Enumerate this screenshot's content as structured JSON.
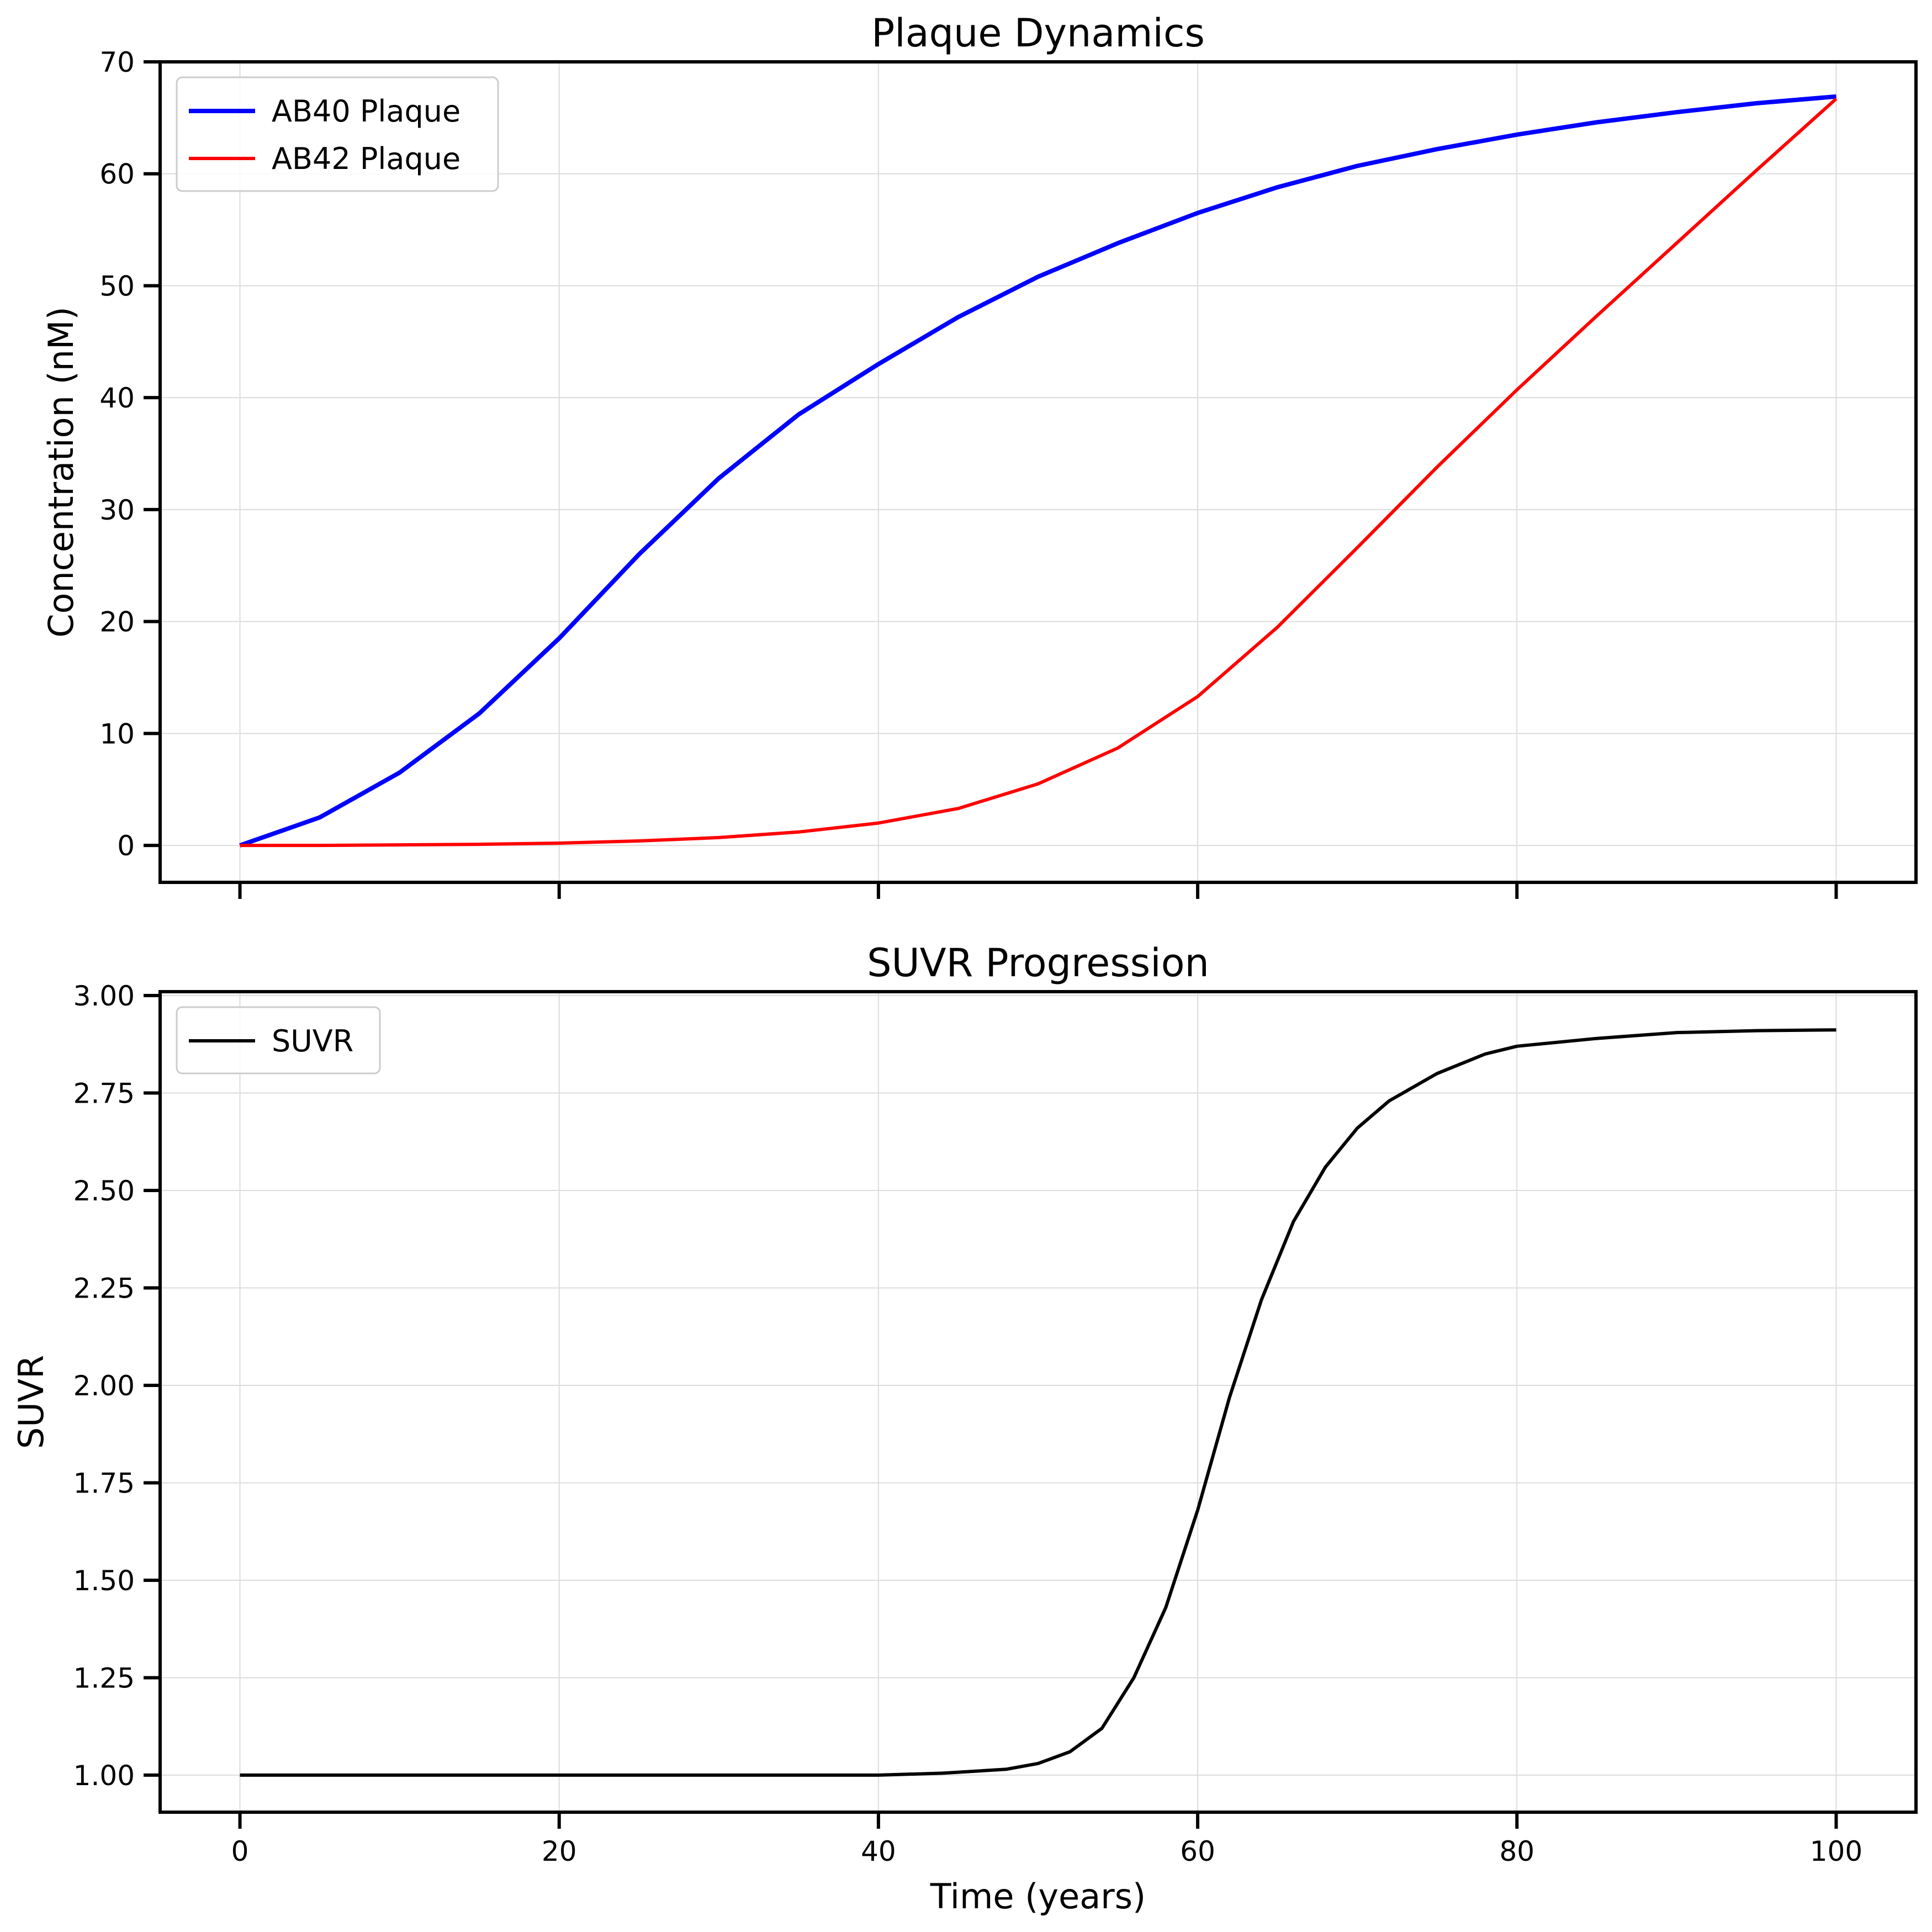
{
  "chart_data": [
    {
      "type": "line",
      "title": "Plaque Dynamics",
      "xlabel": "",
      "ylabel": "Concentration (nM)",
      "xlim": [
        -5,
        105
      ],
      "ylim": [
        -3.3,
        70
      ],
      "xticks": [
        0,
        20,
        40,
        60,
        80,
        100
      ],
      "show_xtick_labels": false,
      "yticks": [
        0,
        10,
        20,
        30,
        40,
        50,
        60,
        70
      ],
      "ytick_labels": [
        "0",
        "10",
        "20",
        "30",
        "40",
        "50",
        "60",
        "70"
      ],
      "grid": true,
      "legend_position": "top-left",
      "series": [
        {
          "name": "AB40 Plaque",
          "color": "#0000ff",
          "x": [
            0,
            5,
            10,
            15,
            20,
            25,
            30,
            35,
            40,
            45,
            50,
            55,
            60,
            65,
            70,
            75,
            80,
            85,
            90,
            95,
            100
          ],
          "y": [
            0,
            2.5,
            6.5,
            11.8,
            18.5,
            26.0,
            32.8,
            38.5,
            43.0,
            47.2,
            50.8,
            53.8,
            56.5,
            58.8,
            60.7,
            62.2,
            63.5,
            64.6,
            65.5,
            66.3,
            66.9
          ]
        },
        {
          "name": "AB42 Plaque",
          "color": "#ff0000",
          "x": [
            0,
            5,
            10,
            15,
            20,
            25,
            30,
            35,
            40,
            45,
            50,
            55,
            60,
            65,
            70,
            75,
            80,
            85,
            90,
            95,
            100
          ],
          "y": [
            0,
            0,
            0.05,
            0.1,
            0.2,
            0.4,
            0.7,
            1.2,
            2.0,
            3.3,
            5.5,
            8.7,
            13.3,
            19.5,
            26.6,
            33.8,
            40.7,
            47.3,
            53.8,
            60.3,
            66.7
          ]
        }
      ]
    },
    {
      "type": "line",
      "title": "SUVR Progression",
      "xlabel": "Time (years)",
      "ylabel": "SUVR",
      "xlim": [
        -5,
        105
      ],
      "ylim": [
        0.905,
        3.01
      ],
      "xticks": [
        0,
        20,
        40,
        60,
        80,
        100
      ],
      "xtick_labels": [
        "0",
        "20",
        "40",
        "60",
        "80",
        "100"
      ],
      "yticks": [
        1.0,
        1.25,
        1.5,
        1.75,
        2.0,
        2.25,
        2.5,
        2.75,
        3.0
      ],
      "ytick_labels": [
        "1.00",
        "1.25",
        "1.50",
        "1.75",
        "2.00",
        "2.25",
        "2.50",
        "2.75",
        "3.00"
      ],
      "grid": true,
      "legend_position": "top-left",
      "series": [
        {
          "name": "SUVR",
          "color": "#000000",
          "x": [
            0,
            10,
            20,
            30,
            40,
            44,
            48,
            50,
            52,
            54,
            56,
            58,
            60,
            62,
            64,
            66,
            68,
            70,
            72,
            75,
            78,
            80,
            85,
            90,
            95,
            100
          ],
          "y": [
            1.0,
            1.0,
            1.0,
            1.0,
            1.0,
            1.005,
            1.015,
            1.03,
            1.06,
            1.12,
            1.25,
            1.43,
            1.68,
            1.97,
            2.22,
            2.42,
            2.56,
            2.66,
            2.73,
            2.8,
            2.85,
            2.87,
            2.89,
            2.905,
            2.91,
            2.912
          ]
        }
      ]
    }
  ]
}
